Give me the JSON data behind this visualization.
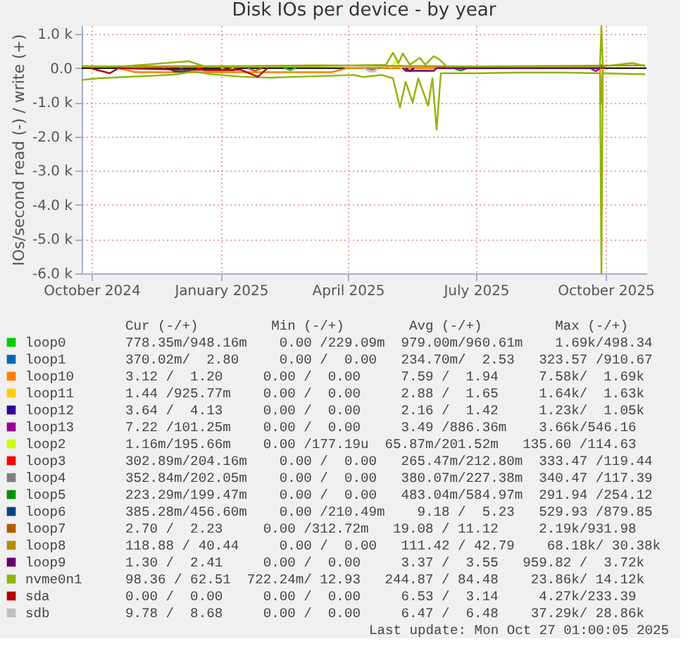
{
  "chart_data": {
    "type": "line",
    "title": "Disk IOs per device - by year",
    "ylabel": "IOs/second read (-) / write (+)",
    "xlim": [
      "2024-09-24",
      "2025-10-30"
    ],
    "ylim": [
      -6000,
      1250
    ],
    "xticks": [
      {
        "value": "2024-10-01",
        "label": "October 2024"
      },
      {
        "value": "2025-01-01",
        "label": "January 2025"
      },
      {
        "value": "2025-04-01",
        "label": "April 2025"
      },
      {
        "value": "2025-07-01",
        "label": "July 2025"
      },
      {
        "value": "2025-10-01",
        "label": "October 2025"
      }
    ],
    "yticks": [
      {
        "value": -6000,
        "label": "-6.0 k"
      },
      {
        "value": -5000,
        "label": "-5.0 k"
      },
      {
        "value": -4000,
        "label": "-4.0 k"
      },
      {
        "value": -3000,
        "label": "-3.0 k"
      },
      {
        "value": -2000,
        "label": "-2.0 k"
      },
      {
        "value": -1000,
        "label": "-1.0 k"
      },
      {
        "value": 0,
        "label": "0.0"
      },
      {
        "value": 1000,
        "label": "1.0 k"
      }
    ],
    "grid": true,
    "legend": "bottom",
    "line_style": "solid",
    "marker": "none",
    "ref_lines": [
      {
        "axis": "y",
        "value": 0,
        "color": "#000000"
      }
    ],
    "series": [
      {
        "name": "loop0",
        "color": "#00cc00",
        "x": [
          "2025-02-15",
          "2025-02-19",
          "2025-02-23"
        ],
        "values": [
          0,
          -60,
          0
        ]
      },
      {
        "name": "loop1",
        "color": "#0066b3",
        "x": [
          "2024-11-20",
          "2024-11-28",
          "2024-12-05"
        ],
        "values": [
          0,
          -60,
          0
        ]
      },
      {
        "name": "loop10",
        "color": "#ff8000",
        "x": [
          "2024-10-20",
          "2024-11-01",
          "2025-03-20",
          "2025-04-01",
          "2025-09-27",
          "2025-09-28",
          "2025-09-29"
        ],
        "values": [
          0,
          -120,
          -120,
          0,
          0,
          -1050,
          0
        ]
      },
      {
        "name": "loop11",
        "color": "#ffcc00",
        "x": [
          "2025-01-01",
          "2025-01-05",
          "2025-01-10"
        ],
        "values": [
          0,
          -70,
          0
        ]
      },
      {
        "name": "loop12",
        "color": "#330099",
        "x": [
          "2025-05-12",
          "2025-05-15",
          "2025-05-18"
        ],
        "values": [
          0,
          -90,
          0
        ]
      },
      {
        "name": "loop13",
        "color": "#990099",
        "x": [
          "2025-09-20",
          "2025-09-24",
          "2025-09-27"
        ],
        "values": [
          0,
          -90,
          0
        ]
      },
      {
        "name": "loop2",
        "color": "#ccff00",
        "x": [
          "2025-05-01",
          "2025-05-05",
          "2025-05-09"
        ],
        "values": [
          0,
          200,
          0
        ]
      },
      {
        "name": "loop3",
        "color": "#ff0000",
        "x": [
          "2024-12-15",
          "2024-12-20",
          "2025-01-10",
          "2025-01-12"
        ],
        "values": [
          0,
          -60,
          -60,
          0
        ]
      },
      {
        "name": "loop4",
        "color": "#808080",
        "x": [
          "2025-04-14",
          "2025-04-18",
          "2025-04-24"
        ],
        "values": [
          0,
          -50,
          0
        ]
      },
      {
        "name": "loop5",
        "color": "#008f00",
        "x": [
          "2025-06-15",
          "2025-06-20",
          "2025-06-25"
        ],
        "values": [
          0,
          -70,
          0
        ]
      },
      {
        "name": "loop6",
        "color": "#00487d",
        "x": [
          "2024-11-25",
          "2024-11-29",
          "2024-12-09",
          "2024-12-12"
        ],
        "values": [
          0,
          -100,
          -100,
          0
        ]
      },
      {
        "name": "loop7",
        "color": "#b35a00",
        "x": [
          "2025-01-20",
          "2025-01-25",
          "2025-01-30"
        ],
        "values": [
          0,
          -80,
          0
        ]
      },
      {
        "name": "loop8",
        "color": "#b38f00",
        "x": [
          "2024-09-24",
          "2025-01-20",
          "2025-03-15",
          "2025-07-01",
          "2025-10-29"
        ],
        "values": [
          50,
          60,
          80,
          50,
          80
        ]
      },
      {
        "name": "loop9",
        "color": "#6b006b",
        "x": [
          "2025-05-10",
          "2025-05-12",
          "2025-05-20",
          "2025-06-01",
          "2025-06-03",
          "2025-09-26",
          "2025-09-28",
          "2025-09-30"
        ],
        "values": [
          0,
          -80,
          -80,
          -80,
          0,
          0,
          80,
          0
        ]
      },
      {
        "name": "nvme0n1",
        "color": "#8fb300",
        "x": [
          "2024-09-24",
          "2024-10-05",
          "2024-10-25",
          "2024-11-15",
          "2024-12-01",
          "2024-12-12",
          "2024-12-25",
          "2025-01-15",
          "2025-02-05",
          "2025-02-25",
          "2025-03-15",
          "2025-04-05",
          "2025-04-12",
          "2025-04-25",
          "2025-05-03",
          "2025-05-08",
          "2025-05-12",
          "2025-05-17",
          "2025-05-21",
          "2025-05-28",
          "2025-05-31",
          "2025-06-03",
          "2025-06-06",
          "2025-07-01",
          "2025-08-01",
          "2025-09-01",
          "2025-09-27",
          "2025-09-28",
          "2025-09-29",
          "2025-10-29"
        ],
        "values": [
          -350,
          -300,
          -260,
          -220,
          -180,
          -100,
          -180,
          -250,
          -280,
          -250,
          -230,
          -200,
          -260,
          -200,
          -300,
          -1150,
          -400,
          -1000,
          -300,
          -1100,
          -300,
          -1800,
          -150,
          -150,
          -130,
          -130,
          -150,
          -6000,
          -150,
          -180
        ]
      },
      {
        "color": "#8fb300",
        "x": [
          "2024-09-24",
          "2024-10-20",
          "2024-12-09",
          "2024-12-20",
          "2025-03-01",
          "2025-04-28",
          "2025-05-03",
          "2025-05-07",
          "2025-05-10",
          "2025-05-15",
          "2025-05-22",
          "2025-05-26",
          "2025-06-01",
          "2025-06-05",
          "2025-06-10",
          "2025-09-27",
          "2025-09-28",
          "2025-09-29",
          "2025-10-20",
          "2025-10-29"
        ],
        "values": [
          60,
          40,
          200,
          50,
          50,
          100,
          450,
          150,
          430,
          100,
          300,
          100,
          350,
          250,
          50,
          50,
          1230,
          50,
          150,
          60
        ]
      },
      {
        "name": "sda",
        "color": "#b30000",
        "x": [
          "2024-09-30",
          "2024-10-14",
          "2024-10-20",
          "2024-12-12",
          "2025-01-15",
          "2025-01-27",
          "2025-02-03"
        ],
        "values": [
          0,
          -150,
          0,
          -50,
          -50,
          -250,
          0
        ]
      },
      {
        "name": "sdb",
        "color": "#bebebe",
        "x": [
          "2025-04-13",
          "2025-04-16",
          "2025-04-20",
          "2025-04-22"
        ],
        "values": [
          0,
          -100,
          -100,
          0
        ]
      }
    ],
    "annotations": [
      "   Cur (-/+)         Min (-/+)        Avg (-/+)         Max (-/+)",
      "778.35m/948.16m    0.00 /229.09m  979.00m/960.61m    1.69k/498.34",
      "370.02m/  2.80     0.00 /  0.00   234.70m/  2.53   323.57 /910.67",
      "  3.12 /  1.20     0.00 /  0.00     7.59 /  1.94     7.58k/  1.69k",
      "  1.44 /925.77m    0.00 /  0.00     2.88 /  1.65     1.64k/  1.63k",
      "  3.64 /  4.13     0.00 /  0.00     2.16 /  1.42     1.23k/  1.05k",
      "  7.22 /101.25m    0.00 /  0.00     3.49 /886.36m    3.66k/546.16",
      "  1.16m/195.66m    0.00 /177.19u  65.87m/201.52m   135.60 /114.63",
      "302.89m/204.16m    0.00 /  0.00   265.47m/212.80m  333.47 /119.44",
      "352.84m/202.05m    0.00 /  0.00   380.07m/227.38m  340.47 /117.39",
      "223.29m/199.47m    0.00 /  0.00   483.04m/584.97m  291.94 /254.12",
      "385.28m/456.60m    0.00 /210.49m    9.18 /  5.23   529.93 /879.85",
      "  2.70 /  2.23     0.00 /312.72m   19.08 / 11.12     2.19k/931.98",
      "118.88 / 40.44     0.00 /  0.00   111.42 / 42.79    68.18k/ 30.38k",
      "  1.30 /  2.41     0.00 /  0.00     3.37 /  3.55   959.82 /  3.72k",
      "  98.36 / 62.51  722.24m/ 12.93   244.87 / 84.48    23.86k/ 14.12k",
      "  0.00 /  0.00     0.00 /  0.00     6.53 /  3.14     4.27k/233.39",
      "  9.78 /  8.68     0.00 /  0.00     6.47 /  6.48    37.29k/ 28.86k",
      "Last update: Mon Oct 27 01:00:05 2025"
    ]
  }
}
